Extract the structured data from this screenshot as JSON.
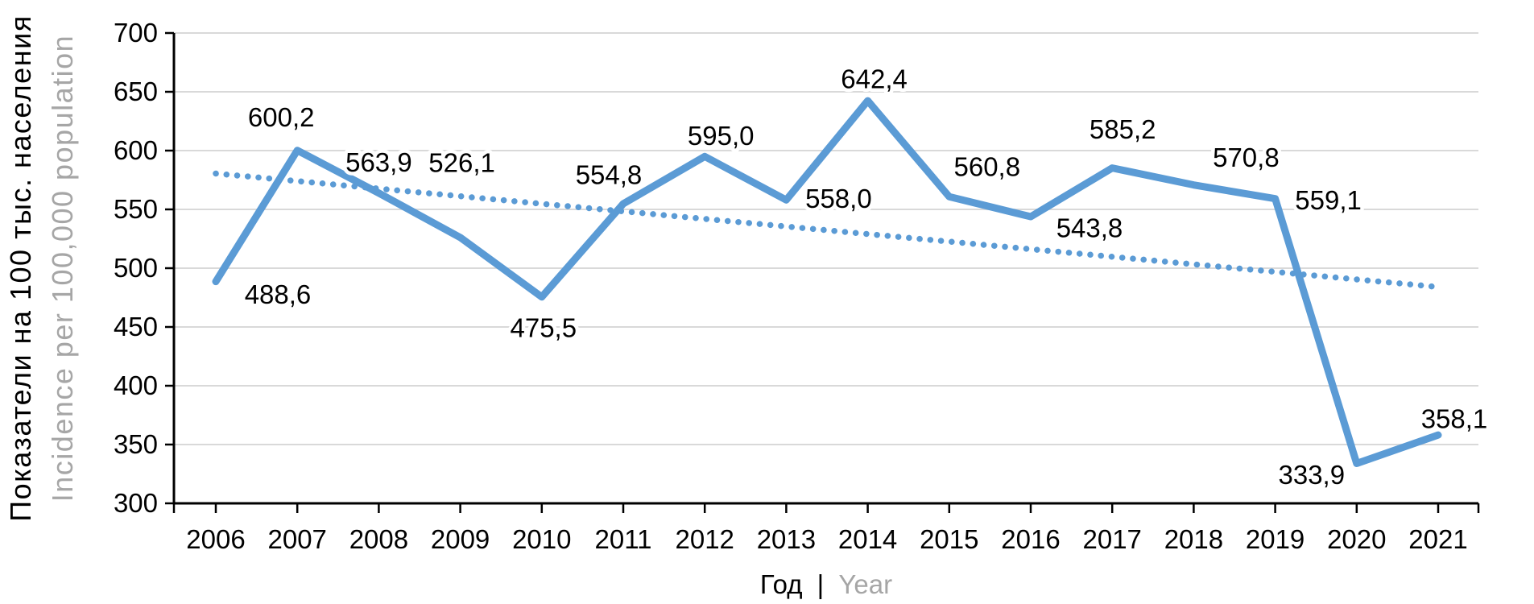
{
  "chart_data": {
    "type": "line",
    "title": "",
    "x_categories": [
      "2006",
      "2007",
      "2008",
      "2009",
      "2010",
      "2011",
      "2012",
      "2013",
      "2014",
      "2015",
      "2016",
      "2017",
      "2018",
      "2019",
      "2020",
      "2021"
    ],
    "series": [
      {
        "name": "incidence",
        "style": "solid",
        "values": [
          488.6,
          600.2,
          563.9,
          526.1,
          475.5,
          554.8,
          595.0,
          558.0,
          642.4,
          560.8,
          543.8,
          585.2,
          570.8,
          559.1,
          333.9,
          358.1
        ],
        "point_labels": [
          "488,6",
          "600,2",
          "563,9",
          "526,1",
          "475,5",
          "554,8",
          "595,0",
          "558,0",
          "642,4",
          "560,8",
          "543,8",
          "585,2",
          "570,8",
          "559,1",
          "333,9",
          "358,1"
        ]
      },
      {
        "name": "linear-trend",
        "style": "dotted",
        "start_value": 580.5,
        "end_value": 484.0
      }
    ],
    "y_axis": {
      "min": 300,
      "max": 700,
      "tick_step": 50,
      "tick_labels": [
        "300",
        "350",
        "400",
        "450",
        "500",
        "550",
        "600",
        "650",
        "700"
      ]
    },
    "axis_titles": {
      "y_ru": "Показатели на 100 тыс. населения",
      "y_en": "Incidence per 100,000 population",
      "x_ru": "Год",
      "x_sep": "|",
      "x_en": "Year"
    },
    "colors": {
      "line": "#5B9BD5",
      "trend": "#5B9BD5",
      "grid": "#D9D9D9",
      "axis": "#000000",
      "text_black": "#000000",
      "text_gray": "#A6A6A6",
      "background": "#FFFFFF"
    },
    "legend": "none",
    "grid": "horizontal"
  }
}
